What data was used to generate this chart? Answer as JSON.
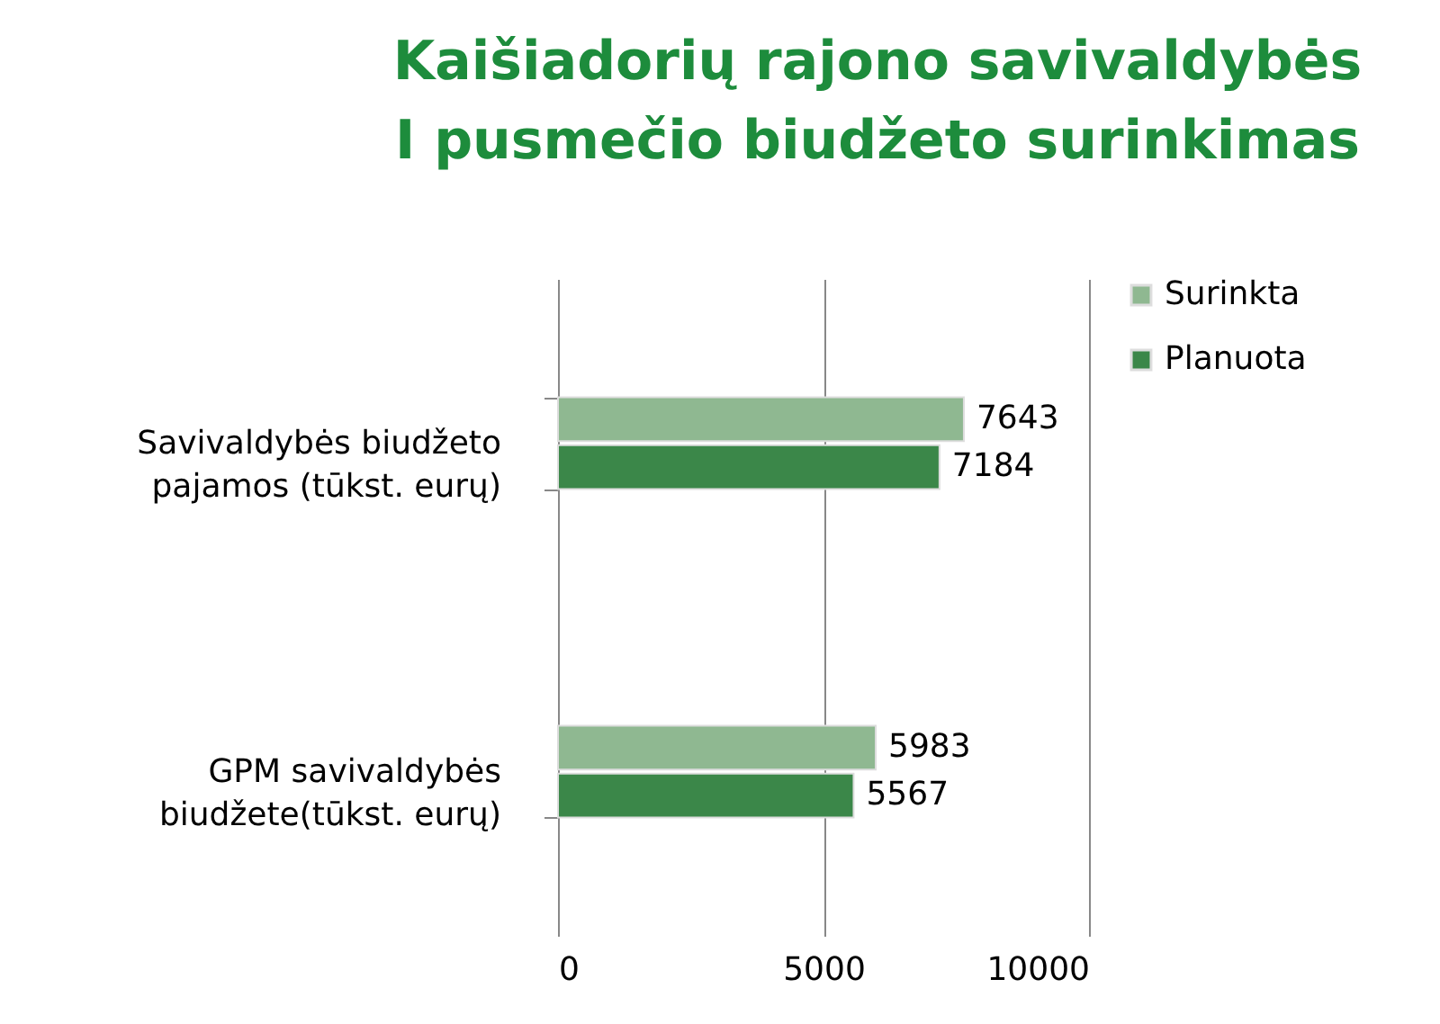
{
  "chart_data": {
    "type": "bar",
    "orientation": "horizontal",
    "title": "Kaišiadorių rajono savivaldybės\nI pusmečio biudžeto surinkimas",
    "categories": [
      "Savivaldybės biudžeto\npajamos (tūkst. eurų)",
      "GPM savivaldybės\nbiudžete(tūkst. eurų)"
    ],
    "series": [
      {
        "name": "Surinkta",
        "color": "#8fb891",
        "values": [
          7643,
          5983
        ]
      },
      {
        "name": "Planuota",
        "color": "#3b8749",
        "values": [
          7184,
          5567
        ]
      }
    ],
    "xlim": [
      0,
      10000
    ],
    "xticks": [
      0,
      5000,
      10000
    ],
    "grid": "x",
    "legend": "right",
    "data_labels": true
  }
}
